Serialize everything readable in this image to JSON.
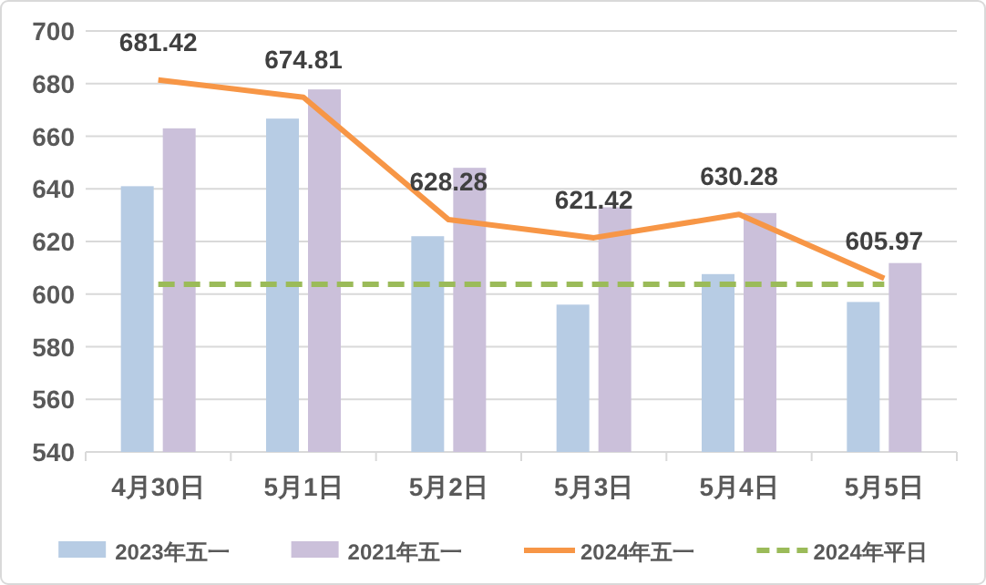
{
  "chart_data": {
    "type": "bar",
    "categories": [
      "4月30日",
      "5月1日",
      "5月2日",
      "5月3日",
      "5月4日",
      "5月5日"
    ],
    "ylim": [
      540,
      700
    ],
    "yticks": [
      540,
      560,
      580,
      600,
      620,
      640,
      660,
      680,
      700
    ],
    "grid": "y",
    "legend": "bottom",
    "series": [
      {
        "name": "2023年五一",
        "color": "#b7cce4",
        "values": [
          641,
          666.7,
          622,
          596,
          607.6,
          597
        ]
      },
      {
        "name": "2021年五一",
        "color": "#cbc0da",
        "values": [
          663,
          677.8,
          648,
          633,
          630.8,
          611.8
        ]
      },
      {
        "name": "2024年五一",
        "type": "line",
        "color": "#f79646",
        "values": [
          681.42,
          674.81,
          628.28,
          621.42,
          630.28,
          605.97
        ],
        "value_labels": [
          "681.42",
          "674.81",
          "628.28",
          "621.42",
          "630.28",
          "605.97"
        ]
      },
      {
        "name": "2024年平日",
        "type": "line",
        "line_style": "dashed",
        "color": "#9bbb59",
        "values": [
          603.7,
          603.7,
          603.7,
          603.7,
          603.7,
          603.7
        ]
      }
    ]
  }
}
